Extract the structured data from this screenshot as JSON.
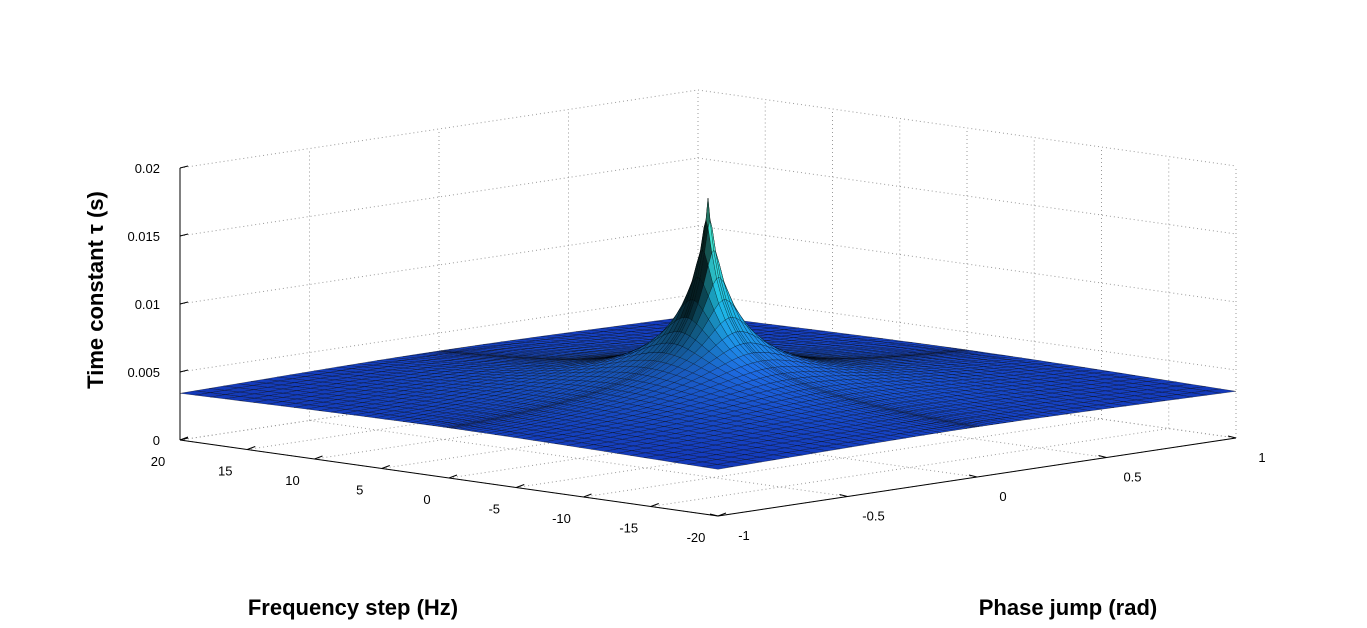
{
  "chart_data": {
    "type": "surface",
    "title": "",
    "xlabel": "Phase jump (rad)",
    "ylabel": "Frequency step (Hz)",
    "zlabel": "Time constant τ (s)",
    "xlim": [
      -1,
      1
    ],
    "ylim": [
      -20,
      20
    ],
    "zlim": [
      0,
      0.02
    ],
    "x_ticks": [
      "-1",
      "-0.5",
      "0",
      "0.5",
      "1"
    ],
    "y_ticks": [
      "20",
      "15",
      "10",
      "5",
      "0",
      "-5",
      "-10",
      "-15",
      "-20"
    ],
    "z_ticks": [
      "0",
      "0.005",
      "0.01",
      "0.015",
      "0.02"
    ],
    "grid": true,
    "colormap": "winter-like (dark blue to cyan)",
    "edge_color": "#000000",
    "peak": {
      "phase_jump": 0,
      "frequency_step": 0,
      "time_constant": 0.0177
    },
    "surface_samples": {
      "note": "Approximate tau values read from the surface",
      "edge_value": 0.0028,
      "along_phase_at_freq_0": {
        "x": [
          -1,
          -0.5,
          -0.1,
          0,
          0.1,
          0.5,
          1
        ],
        "z": [
          0.0028,
          0.004,
          0.009,
          0.0177,
          0.009,
          0.004,
          0.0028
        ]
      },
      "along_freq_at_phase_0": {
        "y": [
          -20,
          -10,
          -2,
          0,
          2,
          10,
          20
        ],
        "z": [
          0.0028,
          0.004,
          0.009,
          0.0177,
          0.009,
          0.004,
          0.0028
        ]
      }
    }
  },
  "labels": {
    "zlabel": "Time constant τ (s)",
    "ylabel": "Frequency step (Hz)",
    "xlabel": "Phase jump (rad)"
  }
}
